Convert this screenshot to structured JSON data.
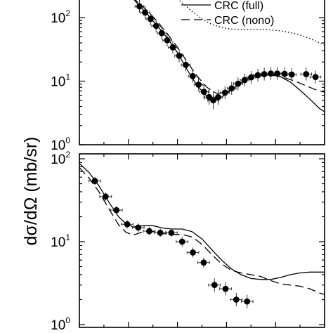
{
  "chart_data": [
    {
      "type": "scatter",
      "panel": "top",
      "ylabel": "dσ/dΩ (mb/sr)",
      "yscale": "log",
      "ylim": [
        1,
        230
      ],
      "xlim": [
        0,
        100
      ],
      "yticks": [
        {
          "value": 100,
          "base": "10",
          "exp": "2"
        },
        {
          "value": 10,
          "base": "10",
          "exp": "1"
        },
        {
          "value": 1,
          "base": "10",
          "exp": "0"
        }
      ],
      "legend": [
        {
          "label": "CRC (full)",
          "style": "solid"
        },
        {
          "label": "CRC (nono)",
          "style": "dashed"
        }
      ],
      "legend_position": "top-right",
      "data_points": [
        {
          "x": 24.5,
          "y": 150,
          "xerr": 1.8,
          "yerr": 0.1
        },
        {
          "x": 26.8,
          "y": 120,
          "xerr": 1.8,
          "yerr": 0.1
        },
        {
          "x": 29.0,
          "y": 95,
          "xerr": 1.8,
          "yerr": 0.1
        },
        {
          "x": 31.3,
          "y": 74,
          "xerr": 1.8,
          "yerr": 0.1
        },
        {
          "x": 33.6,
          "y": 57,
          "xerr": 1.8,
          "yerr": 0.1
        },
        {
          "x": 35.8,
          "y": 44,
          "xerr": 1.8,
          "yerr": 0.1
        },
        {
          "x": 38.1,
          "y": 34,
          "xerr": 1.8,
          "yerr": 0.1
        },
        {
          "x": 40.7,
          "y": 25,
          "xerr": 1.8,
          "yerr": 0.1
        },
        {
          "x": 43.4,
          "y": 18,
          "xerr": 1.8,
          "yerr": 0.1
        },
        {
          "x": 46.2,
          "y": 12,
          "xerr": 1.8,
          "yerr": 0.1
        },
        {
          "x": 48.6,
          "y": 8.8,
          "xerr": 1.8,
          "yerr": 0.1
        },
        {
          "x": 50.8,
          "y": 6.8,
          "xerr": 1.8,
          "yerr": 0.12
        },
        {
          "x": 52.9,
          "y": 5.6,
          "xerr": 1.8,
          "yerr": 0.12
        },
        {
          "x": 54.6,
          "y": 5.0,
          "xerr": 2.2,
          "yerr": 0.14
        },
        {
          "x": 56.6,
          "y": 5.6,
          "xerr": 1.8,
          "yerr": 0.12
        },
        {
          "x": 59.4,
          "y": 6.6,
          "xerr": 1.8,
          "yerr": 0.1
        },
        {
          "x": 62.1,
          "y": 7.7,
          "xerr": 1.8,
          "yerr": 0.1
        },
        {
          "x": 64.7,
          "y": 9.1,
          "xerr": 1.8,
          "yerr": 0.1
        },
        {
          "x": 67.4,
          "y": 10.4,
          "xerr": 1.8,
          "yerr": 0.1
        },
        {
          "x": 70.1,
          "y": 11.5,
          "xerr": 1.8,
          "yerr": 0.1
        },
        {
          "x": 72.8,
          "y": 12.4,
          "xerr": 1.8,
          "yerr": 0.1
        },
        {
          "x": 75.4,
          "y": 12.9,
          "xerr": 1.8,
          "yerr": 0.1
        },
        {
          "x": 78.1,
          "y": 13.2,
          "xerr": 1.8,
          "yerr": 0.1
        },
        {
          "x": 80.7,
          "y": 13.2,
          "xerr": 1.8,
          "yerr": 0.1
        },
        {
          "x": 83.7,
          "y": 13.0,
          "xerr": 1.8,
          "yerr": 0.1
        },
        {
          "x": 86.6,
          "y": 12.7,
          "xerr": 1.8,
          "yerr": 0.1
        },
        {
          "x": 92.5,
          "y": 12.9,
          "xerr": 2.2,
          "yerr": 0.1
        },
        {
          "x": 96.3,
          "y": 11.6,
          "xerr": 2.2,
          "yerr": 0.1
        }
      ],
      "series": [
        {
          "style": "solid",
          "x": [
            18,
            24,
            28,
            32,
            36,
            40,
            44,
            48,
            52,
            55,
            58,
            62,
            66,
            70,
            74,
            78,
            82,
            86,
            90,
            94,
            98,
            100
          ],
          "y": [
            300,
            160,
            110,
            72,
            47,
            28,
            15,
            8.5,
            5.8,
            5.0,
            5.6,
            7.3,
            9.6,
            11.8,
            13.0,
            13.0,
            11.8,
            9.7,
            7.2,
            5.2,
            3.7,
            3.3
          ]
        },
        {
          "style": "dashed",
          "x": [
            18,
            24,
            28,
            32,
            36,
            40,
            44,
            48,
            52,
            56,
            60,
            64,
            68,
            72,
            76,
            80,
            84,
            88,
            92,
            96,
            100
          ],
          "y": [
            300,
            170,
            125,
            85,
            55,
            34,
            20,
            12,
            8.0,
            6.4,
            6.7,
            8.2,
            10.2,
            11.8,
            12.5,
            12.2,
            11.2,
            10.0,
            8.6,
            7.4,
            6.7
          ]
        },
        {
          "style": "dotted",
          "x": [
            38,
            42,
            46,
            50,
            54,
            58,
            62,
            66,
            70,
            74,
            78,
            82,
            86,
            90,
            94,
            98,
            100
          ],
          "y": [
            230,
            170,
            125,
            95,
            78,
            70,
            66,
            65,
            65,
            65,
            64,
            62,
            58,
            53,
            47,
            40,
            37
          ]
        }
      ]
    },
    {
      "type": "scatter",
      "panel": "bottom",
      "yscale": "log",
      "ylim": [
        1,
        100
      ],
      "xlim": [
        0,
        100
      ],
      "yticks": [
        {
          "value": 100,
          "base": "10",
          "exp": "2"
        },
        {
          "value": 10,
          "base": "10",
          "exp": "1"
        },
        {
          "value": 1,
          "base": "10",
          "exp": "0"
        }
      ],
      "data_points": [
        {
          "x": 6.3,
          "y": 54,
          "xerr": 2.4,
          "yerr": 0.05
        },
        {
          "x": 10.7,
          "y": 35,
          "xerr": 2.4,
          "yerr": 0.05
        },
        {
          "x": 15.1,
          "y": 24,
          "xerr": 2.4,
          "yerr": 0.05
        },
        {
          "x": 19.5,
          "y": 16.2,
          "xerr": 2.4,
          "yerr": 0.05
        },
        {
          "x": 24.0,
          "y": 14.8,
          "xerr": 2.4,
          "yerr": 0.05
        },
        {
          "x": 28.5,
          "y": 13.4,
          "xerr": 2.4,
          "yerr": 0.05
        },
        {
          "x": 33.0,
          "y": 12.8,
          "xerr": 2.4,
          "yerr": 0.05
        },
        {
          "x": 37.5,
          "y": 12.8,
          "xerr": 2.4,
          "yerr": 0.05
        },
        {
          "x": 41.9,
          "y": 10.0,
          "xerr": 2.4,
          "yerr": 0.06
        },
        {
          "x": 46.3,
          "y": 7.4,
          "xerr": 2.4,
          "yerr": 0.06
        },
        {
          "x": 50.7,
          "y": 5.6,
          "xerr": 2.4,
          "yerr": 0.06
        },
        {
          "x": 55.1,
          "y": 3.0,
          "xerr": 2.4,
          "yerr": 0.08
        },
        {
          "x": 59.6,
          "y": 2.7,
          "xerr": 2.4,
          "yerr": 0.08
        },
        {
          "x": 64.0,
          "y": 2.0,
          "xerr": 2.4,
          "yerr": 0.08
        },
        {
          "x": 68.4,
          "y": 1.9,
          "xerr": 2.4,
          "yerr": 0.08
        }
      ],
      "series": [
        {
          "style": "solid",
          "x": [
            0,
            4,
            8,
            12,
            16,
            19,
            22,
            26,
            30,
            34,
            38,
            42,
            46,
            50,
            54,
            58,
            62,
            66,
            70,
            74,
            78,
            82,
            86,
            90,
            94,
            98,
            100
          ],
          "y": [
            88,
            68,
            47,
            30,
            20,
            16.5,
            15,
            15.6,
            15.6,
            14.6,
            14.2,
            14.2,
            13.2,
            10.8,
            8.0,
            6.0,
            4.7,
            4.0,
            3.6,
            3.5,
            3.5,
            3.7,
            4.0,
            4.2,
            4.3,
            4.3,
            4.3
          ]
        },
        {
          "style": "dashed",
          "x": [
            0,
            4,
            8,
            12,
            16,
            19,
            22,
            26,
            30,
            34,
            38,
            42,
            46,
            50,
            54,
            58,
            62,
            66,
            70,
            74,
            78,
            82,
            86,
            90,
            94,
            98,
            100
          ],
          "y": [
            78,
            58,
            40,
            25,
            16,
            13.0,
            12.0,
            13.2,
            13.2,
            12.5,
            12.2,
            12.2,
            11.4,
            9.3,
            7.0,
            5.4,
            4.5,
            4.2,
            4.0,
            3.8,
            3.4,
            3.1,
            3.0,
            2.9,
            2.7,
            2.4,
            2.3
          ]
        }
      ]
    }
  ]
}
